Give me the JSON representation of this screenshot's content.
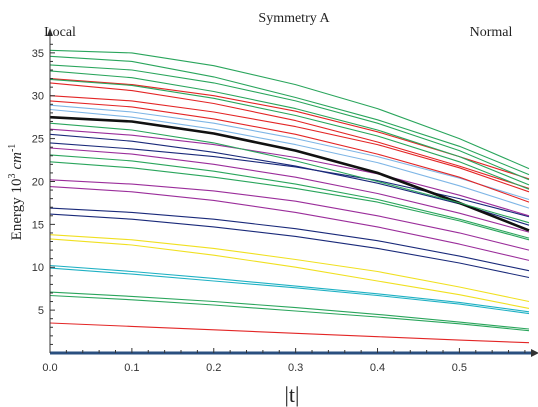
{
  "chart_data": {
    "type": "line",
    "title": "Symmetry A",
    "corner_left": "Local",
    "corner_right": "Normal",
    "xlabel": "|t|",
    "ylabel_main": "Energy 10",
    "ylabel_exp": "3",
    "ylabel_unit": "cm",
    "ylabel_unit_exp": "-1",
    "xlim": [
      0.0,
      0.585
    ],
    "ylim": [
      0,
      36.5
    ],
    "xticks": [
      "0.0",
      "0.1",
      "0.2",
      "0.3",
      "0.4",
      "0.5"
    ],
    "yticks": [
      "5",
      "10",
      "15",
      "20",
      "25",
      "30",
      "35"
    ],
    "x": [
      0.0,
      0.1,
      0.2,
      0.3,
      0.4,
      0.5,
      0.585
    ],
    "grid": false,
    "series": [
      {
        "color": "#e32626",
        "values": [
          3.5,
          3.1,
          2.7,
          2.3,
          1.9,
          1.5,
          1.2
        ]
      },
      {
        "color": "#2aa55c",
        "values": [
          7.1,
          6.6,
          6.0,
          5.3,
          4.5,
          3.6,
          2.8
        ]
      },
      {
        "color": "#2aa55c",
        "values": [
          6.7,
          6.2,
          5.6,
          4.9,
          4.2,
          3.4,
          2.6
        ]
      },
      {
        "color": "#1fb1c4",
        "values": [
          10.2,
          9.5,
          8.7,
          7.8,
          6.9,
          5.9,
          4.8
        ]
      },
      {
        "color": "#1fb1c4",
        "values": [
          9.9,
          9.2,
          8.4,
          7.6,
          6.7,
          5.7,
          4.6
        ]
      },
      {
        "color": "#f0e020",
        "values": [
          13.8,
          13.2,
          12.2,
          10.9,
          9.5,
          7.7,
          6.0
        ]
      },
      {
        "color": "#f0e020",
        "values": [
          13.3,
          12.6,
          11.4,
          10.0,
          8.4,
          6.8,
          5.2
        ]
      },
      {
        "color": "#1a2a7a",
        "values": [
          16.9,
          16.4,
          15.6,
          14.5,
          13.1,
          11.3,
          9.6
        ]
      },
      {
        "color": "#1a2a7a",
        "values": [
          16.2,
          15.6,
          14.7,
          13.6,
          12.2,
          10.5,
          8.8
        ]
      },
      {
        "color": "#9b2e9b",
        "values": [
          20.2,
          19.7,
          18.9,
          17.7,
          16.0,
          14.0,
          12.0
        ]
      },
      {
        "color": "#9b2e9b",
        "values": [
          19.4,
          18.8,
          17.8,
          16.4,
          14.7,
          12.7,
          10.8
        ]
      },
      {
        "color": "#2aa55c",
        "values": [
          23.1,
          22.4,
          21.2,
          19.7,
          17.9,
          15.6,
          13.4
        ]
      },
      {
        "color": "#2aa55c",
        "values": [
          22.3,
          21.6,
          20.5,
          19.2,
          17.6,
          15.4,
          13.2
        ]
      },
      {
        "color": "#1a2a7a",
        "values": [
          24.5,
          23.8,
          22.9,
          21.7,
          20.1,
          18.0,
          15.9
        ]
      },
      {
        "color": "#9b2e9b",
        "values": [
          26.1,
          25.4,
          24.3,
          22.8,
          20.9,
          18.4,
          16.0
        ]
      },
      {
        "color": "#1a2a7a",
        "values": [
          25.5,
          24.7,
          23.4,
          21.8,
          19.8,
          17.4,
          14.9
        ]
      },
      {
        "color": "#9b2e9b",
        "values": [
          23.9,
          23.2,
          22.0,
          20.5,
          18.6,
          16.3,
          14.1
        ]
      },
      {
        "color": "#7fb6e6",
        "values": [
          28.9,
          28.1,
          26.8,
          25.0,
          22.9,
          20.4,
          17.9
        ]
      },
      {
        "color": "#7fb6e6",
        "values": [
          28.4,
          27.5,
          26.1,
          24.3,
          22.2,
          19.5,
          16.9
        ]
      },
      {
        "color": "#111111",
        "width": 2.6,
        "values": [
          27.5,
          27.0,
          25.6,
          23.6,
          21.0,
          17.5,
          14.3
        ]
      },
      {
        "color": "#e32626",
        "values": [
          32.0,
          31.3,
          30.0,
          28.2,
          25.8,
          22.9,
          20.3
        ]
      },
      {
        "color": "#e32626",
        "values": [
          31.5,
          30.6,
          29.1,
          27.1,
          24.6,
          21.8,
          19.2
        ]
      },
      {
        "color": "#e32626",
        "values": [
          30.0,
          29.4,
          28.1,
          26.4,
          24.3,
          21.6,
          18.8
        ]
      },
      {
        "color": "#e32626",
        "values": [
          29.4,
          28.7,
          27.3,
          25.5,
          23.2,
          20.5,
          17.6
        ]
      },
      {
        "color": "#2aa55c",
        "values": [
          35.3,
          35.0,
          33.5,
          31.3,
          28.5,
          25.0,
          21.5
        ]
      },
      {
        "color": "#2aa55c",
        "values": [
          34.6,
          34.0,
          32.2,
          29.8,
          27.2,
          24.1,
          20.8
        ]
      },
      {
        "color": "#2aa55c",
        "values": [
          33.6,
          33.0,
          31.5,
          29.4,
          26.8,
          23.6,
          20.2
        ]
      },
      {
        "color": "#2aa55c",
        "values": [
          32.9,
          32.1,
          30.5,
          28.5,
          26.0,
          22.9,
          19.6
        ]
      },
      {
        "color": "#2aa55c",
        "values": [
          31.9,
          31.2,
          29.7,
          27.7,
          25.3,
          22.3,
          19.1
        ]
      },
      {
        "color": "#2aa55c",
        "values": [
          26.8,
          26.0,
          24.5,
          22.4,
          20.0,
          17.5,
          15.2
        ]
      }
    ]
  }
}
